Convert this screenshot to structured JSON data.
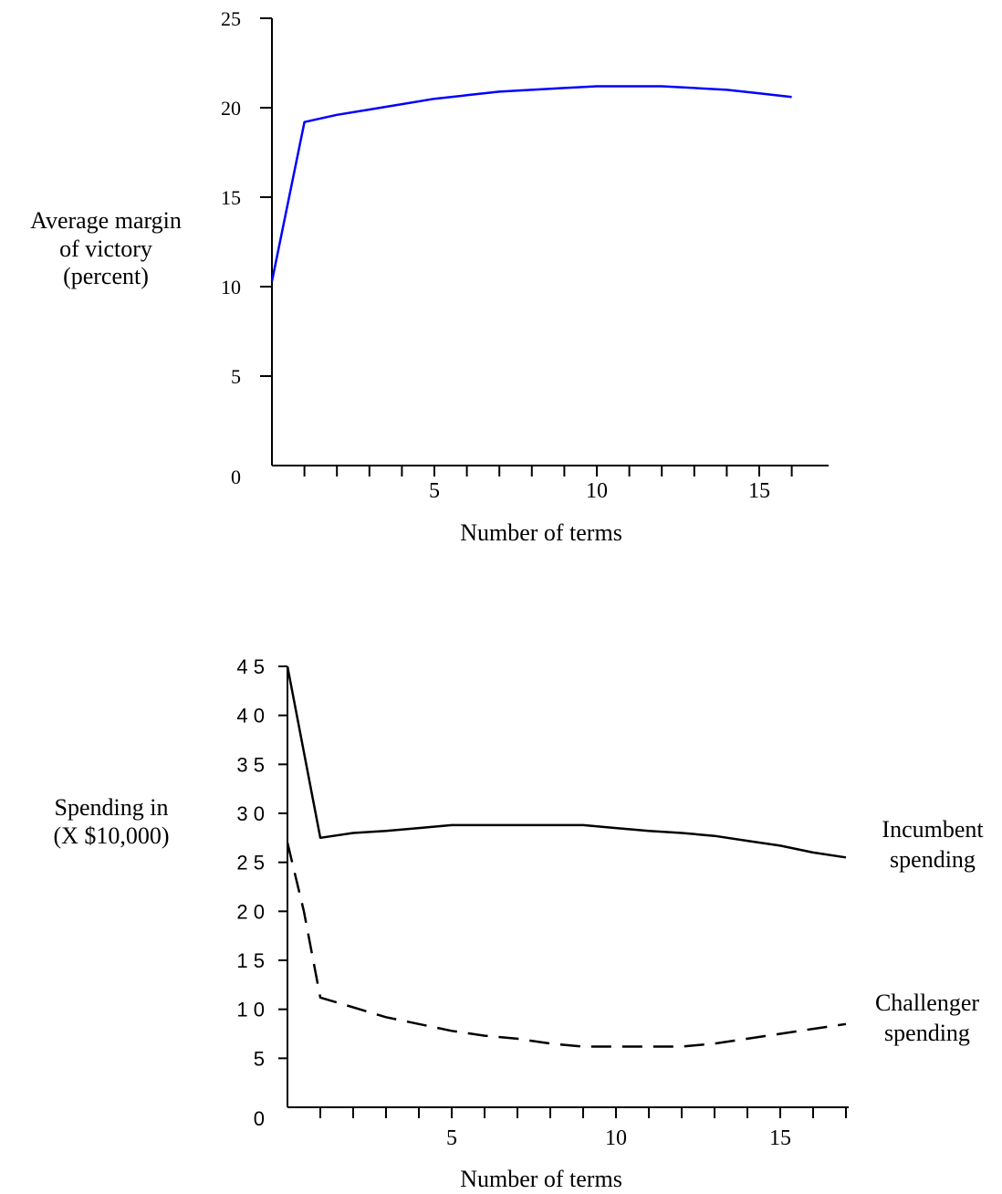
{
  "chart_data": [
    {
      "type": "line",
      "xlabel": "Number of terms",
      "ylabel": [
        "Average margin",
        "of victory",
        "(percent)"
      ],
      "xlim": [
        0,
        16
      ],
      "ylim": [
        0,
        25
      ],
      "yticks": [
        0,
        5,
        10,
        15,
        20,
        25
      ],
      "xtick_labels": [
        5,
        10,
        15
      ],
      "minor_xticks": [
        1,
        2,
        3,
        4,
        5,
        6,
        7,
        8,
        9,
        10,
        11,
        12,
        13,
        14,
        15,
        16
      ],
      "series": [
        {
          "color": "#0000ff",
          "style": "solid",
          "x": [
            0,
            1,
            2,
            3,
            4,
            5,
            6,
            7,
            8,
            9,
            10,
            11,
            12,
            13,
            14,
            15,
            16
          ],
          "y": [
            10.3,
            19.2,
            19.6,
            19.9,
            20.2,
            20.5,
            20.7,
            20.9,
            21.0,
            21.1,
            21.2,
            21.2,
            21.2,
            21.1,
            21.0,
            20.8,
            20.6
          ]
        }
      ]
    },
    {
      "type": "line",
      "xlabel": "Number of terms",
      "ylabel": [
        "Spending in",
        "(X $10,000)"
      ],
      "xlim": [
        0,
        17
      ],
      "ylim": [
        0,
        45
      ],
      "yticks": [
        0,
        5,
        10,
        15,
        20,
        25,
        30,
        35,
        40,
        45
      ],
      "ytick_labels": [
        "0",
        "5",
        "1 0",
        "1 5",
        "2 0",
        "2 5",
        "3 0",
        "3 5",
        "4 0",
        "4 5"
      ],
      "xtick_labels": [
        5,
        10,
        15
      ],
      "minor_xticks": [
        1,
        2,
        3,
        4,
        5,
        6,
        7,
        8,
        9,
        10,
        11,
        12,
        13,
        14,
        15,
        16,
        17
      ],
      "series": [
        {
          "name": "Incumbent spending",
          "label_lines": [
            "Incumbent",
            "spending"
          ],
          "color": "#000000",
          "style": "solid",
          "x": [
            0,
            1,
            2,
            3,
            4,
            5,
            6,
            7,
            8,
            9,
            10,
            11,
            12,
            13,
            14,
            15,
            16,
            17
          ],
          "y": [
            45,
            27.5,
            28,
            28.2,
            28.5,
            28.8,
            28.8,
            28.8,
            28.8,
            28.8,
            28.5,
            28.2,
            28.0,
            27.7,
            27.2,
            26.7,
            26.0,
            25.5
          ]
        },
        {
          "name": "Challenger spending",
          "label_lines": [
            "Challenger",
            "spending"
          ],
          "color": "#000000",
          "style": "dashed",
          "x": [
            0,
            0.5,
            1,
            2,
            3,
            4,
            5,
            6,
            7,
            8,
            9,
            10,
            11,
            12,
            13,
            14,
            15,
            16,
            17
          ],
          "y": [
            27,
            20,
            11.2,
            10.2,
            9.2,
            8.5,
            7.8,
            7.3,
            7.0,
            6.5,
            6.2,
            6.2,
            6.2,
            6.2,
            6.5,
            7.0,
            7.5,
            8.0,
            8.5
          ]
        }
      ]
    }
  ]
}
